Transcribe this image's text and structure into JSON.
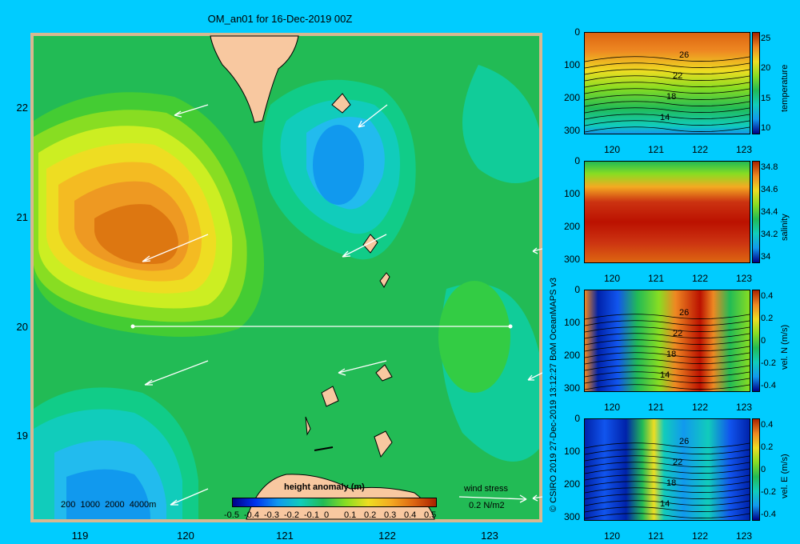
{
  "title": "OM_an01 for 16-Dec-2019 00Z",
  "map": {
    "y_ticks": [
      "22",
      "21",
      "20",
      "19"
    ],
    "x_ticks": [
      "119",
      "120",
      "121",
      "122",
      "123"
    ],
    "depth_legend": [
      "200",
      "1000",
      "2000",
      "4000m"
    ],
    "colorbar_title": "height anomaly (m)",
    "colorbar_ticks": [
      "-0.5",
      "-0.4",
      "-0.3",
      "-0.2",
      "-0.1",
      "0",
      "0.1",
      "0.2",
      "0.3",
      "0.4",
      "0.5"
    ],
    "wind_label": "wind stress",
    "wind_scale": "0.2 N/m2",
    "section_lat": 20,
    "section_lon": [
      119.5,
      123.2
    ]
  },
  "copyright": "© CSIRO 2019  27-Dec-2019 13:12:27 BoM OceanMAPS v3",
  "panels": [
    {
      "name": "temperature",
      "label": "temperature",
      "y_ticks": [
        "0",
        "100",
        "200",
        "300"
      ],
      "x_ticks": [
        "120",
        "121",
        "122",
        "123"
      ],
      "cb_ticks": [
        "25",
        "20",
        "15",
        "10"
      ],
      "contour_labels": [
        "26",
        "22",
        "18",
        "14"
      ]
    },
    {
      "name": "salinity",
      "label": "salinity",
      "y_ticks": [
        "0",
        "100",
        "200",
        "300"
      ],
      "x_ticks": [
        "120",
        "121",
        "122",
        "123"
      ],
      "cb_ticks": [
        "34.8",
        "34.6",
        "34.4",
        "34.2",
        "34"
      ],
      "contour_labels": []
    },
    {
      "name": "vel-n",
      "label": "vel. N (m/s)",
      "y_ticks": [
        "0",
        "100",
        "200",
        "300"
      ],
      "x_ticks": [
        "120",
        "121",
        "122",
        "123"
      ],
      "cb_ticks": [
        "0.4",
        "0.2",
        "0",
        "-0.2",
        "-0.4"
      ],
      "contour_labels": [
        "26",
        "22",
        "18",
        "14"
      ]
    },
    {
      "name": "vel-e",
      "label": "vel. E (m/s)",
      "y_ticks": [
        "0",
        "100",
        "200",
        "300"
      ],
      "x_ticks": [
        "120",
        "121",
        "122",
        "123"
      ],
      "cb_ticks": [
        "0.4",
        "0.2",
        "0",
        "-0.2",
        "-0.4"
      ],
      "contour_labels": [
        "26",
        "22",
        "18",
        "14"
      ]
    }
  ]
}
